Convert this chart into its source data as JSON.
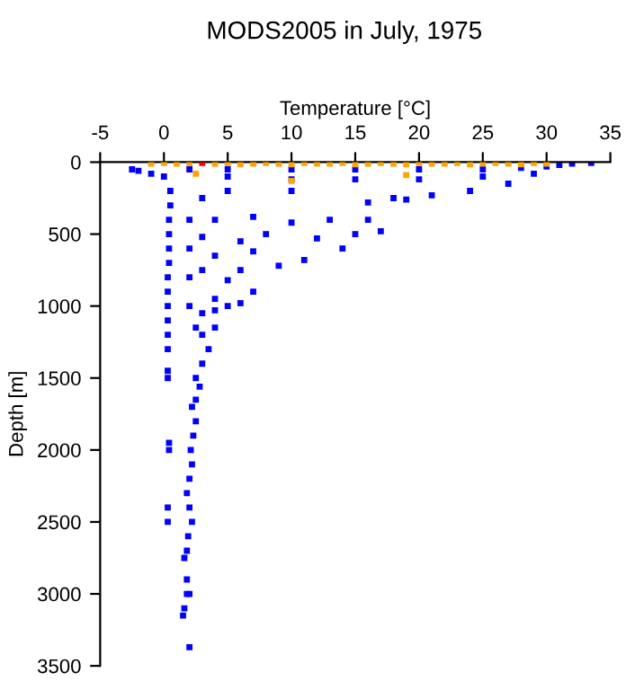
{
  "chart_data": {
    "type": "scatter",
    "title": "MODS2005 in July, 1975",
    "xlabel": "Temperature [°C]",
    "ylabel": "Depth [m]",
    "xlim": [
      -5,
      35
    ],
    "xticks": [
      -5,
      0,
      5,
      10,
      15,
      20,
      25,
      30,
      35
    ],
    "ylim": [
      3500,
      0
    ],
    "yticks": [
      0,
      500,
      1000,
      1500,
      2000,
      2500,
      3000,
      3500
    ],
    "grid": false,
    "legend": false,
    "marker": "square",
    "series": [
      {
        "color": "#0000ff",
        "x": [
          -2.5,
          -2,
          -1,
          0,
          0.5,
          0.5,
          0.4,
          0.4,
          0.4,
          0.4,
          0.3,
          0.3,
          0.3,
          0.3,
          0.3,
          0.3,
          0.3,
          0.3,
          0.4,
          0.4,
          0.3,
          0.3,
          2,
          5,
          10,
          15,
          20,
          25,
          28,
          30,
          31,
          32,
          33.5,
          5,
          10,
          15,
          20,
          25,
          29,
          27,
          24,
          21,
          19,
          18,
          16,
          10,
          5,
          3,
          2,
          4,
          7,
          10,
          13,
          16,
          17,
          15,
          12,
          8,
          6,
          3,
          2,
          4,
          7,
          11,
          14,
          9,
          6,
          3,
          2,
          5,
          7,
          4,
          2,
          3,
          4,
          5,
          6,
          2.5,
          3,
          4,
          3.5,
          3,
          2.5,
          2.8,
          2.5,
          2.2,
          2.5,
          2.3,
          2.1,
          2.2,
          2,
          1.8,
          2,
          2.2,
          1.9,
          1.8,
          1.6,
          1.8,
          1.8,
          2,
          1.6,
          1.5,
          2
        ],
        "values": [
          50,
          60,
          80,
          100,
          200,
          300,
          400,
          500,
          600,
          700,
          800,
          900,
          1000,
          1100,
          1200,
          1300,
          1450,
          1500,
          1950,
          2000,
          2400,
          2500,
          50,
          50,
          50,
          50,
          50,
          50,
          40,
          30,
          20,
          10,
          5,
          100,
          120,
          120,
          120,
          100,
          80,
          150,
          200,
          230,
          260,
          250,
          280,
          200,
          200,
          250,
          400,
          400,
          380,
          420,
          400,
          400,
          480,
          500,
          530,
          500,
          550,
          520,
          600,
          650,
          620,
          680,
          600,
          720,
          750,
          750,
          800,
          820,
          900,
          950,
          1000,
          1050,
          1030,
          1000,
          980,
          1150,
          1200,
          1150,
          1300,
          1400,
          1500,
          1560,
          1650,
          1700,
          1800,
          1900,
          2000,
          2100,
          2200,
          2300,
          2400,
          2500,
          2600,
          2700,
          2750,
          2900,
          3000,
          3000,
          3100,
          3150,
          3370
        ]
      },
      {
        "color": "#ffa500",
        "x": [
          -1,
          0,
          1,
          2,
          4,
          5,
          6,
          7,
          8,
          9,
          10,
          11,
          12,
          13,
          14,
          15,
          16,
          17,
          18,
          19,
          20,
          21,
          22,
          23,
          24,
          25,
          26,
          27,
          28,
          29,
          30,
          2.5,
          10,
          19
        ],
        "values": [
          10,
          5,
          10,
          5,
          10,
          5,
          15,
          10,
          5,
          10,
          15,
          5,
          10,
          10,
          5,
          15,
          10,
          5,
          10,
          15,
          5,
          10,
          10,
          5,
          15,
          10,
          5,
          10,
          15,
          5,
          10,
          80,
          130,
          90
        ]
      },
      {
        "color": "#ff0000",
        "x": [
          3
        ],
        "values": [
          5
        ]
      }
    ]
  }
}
